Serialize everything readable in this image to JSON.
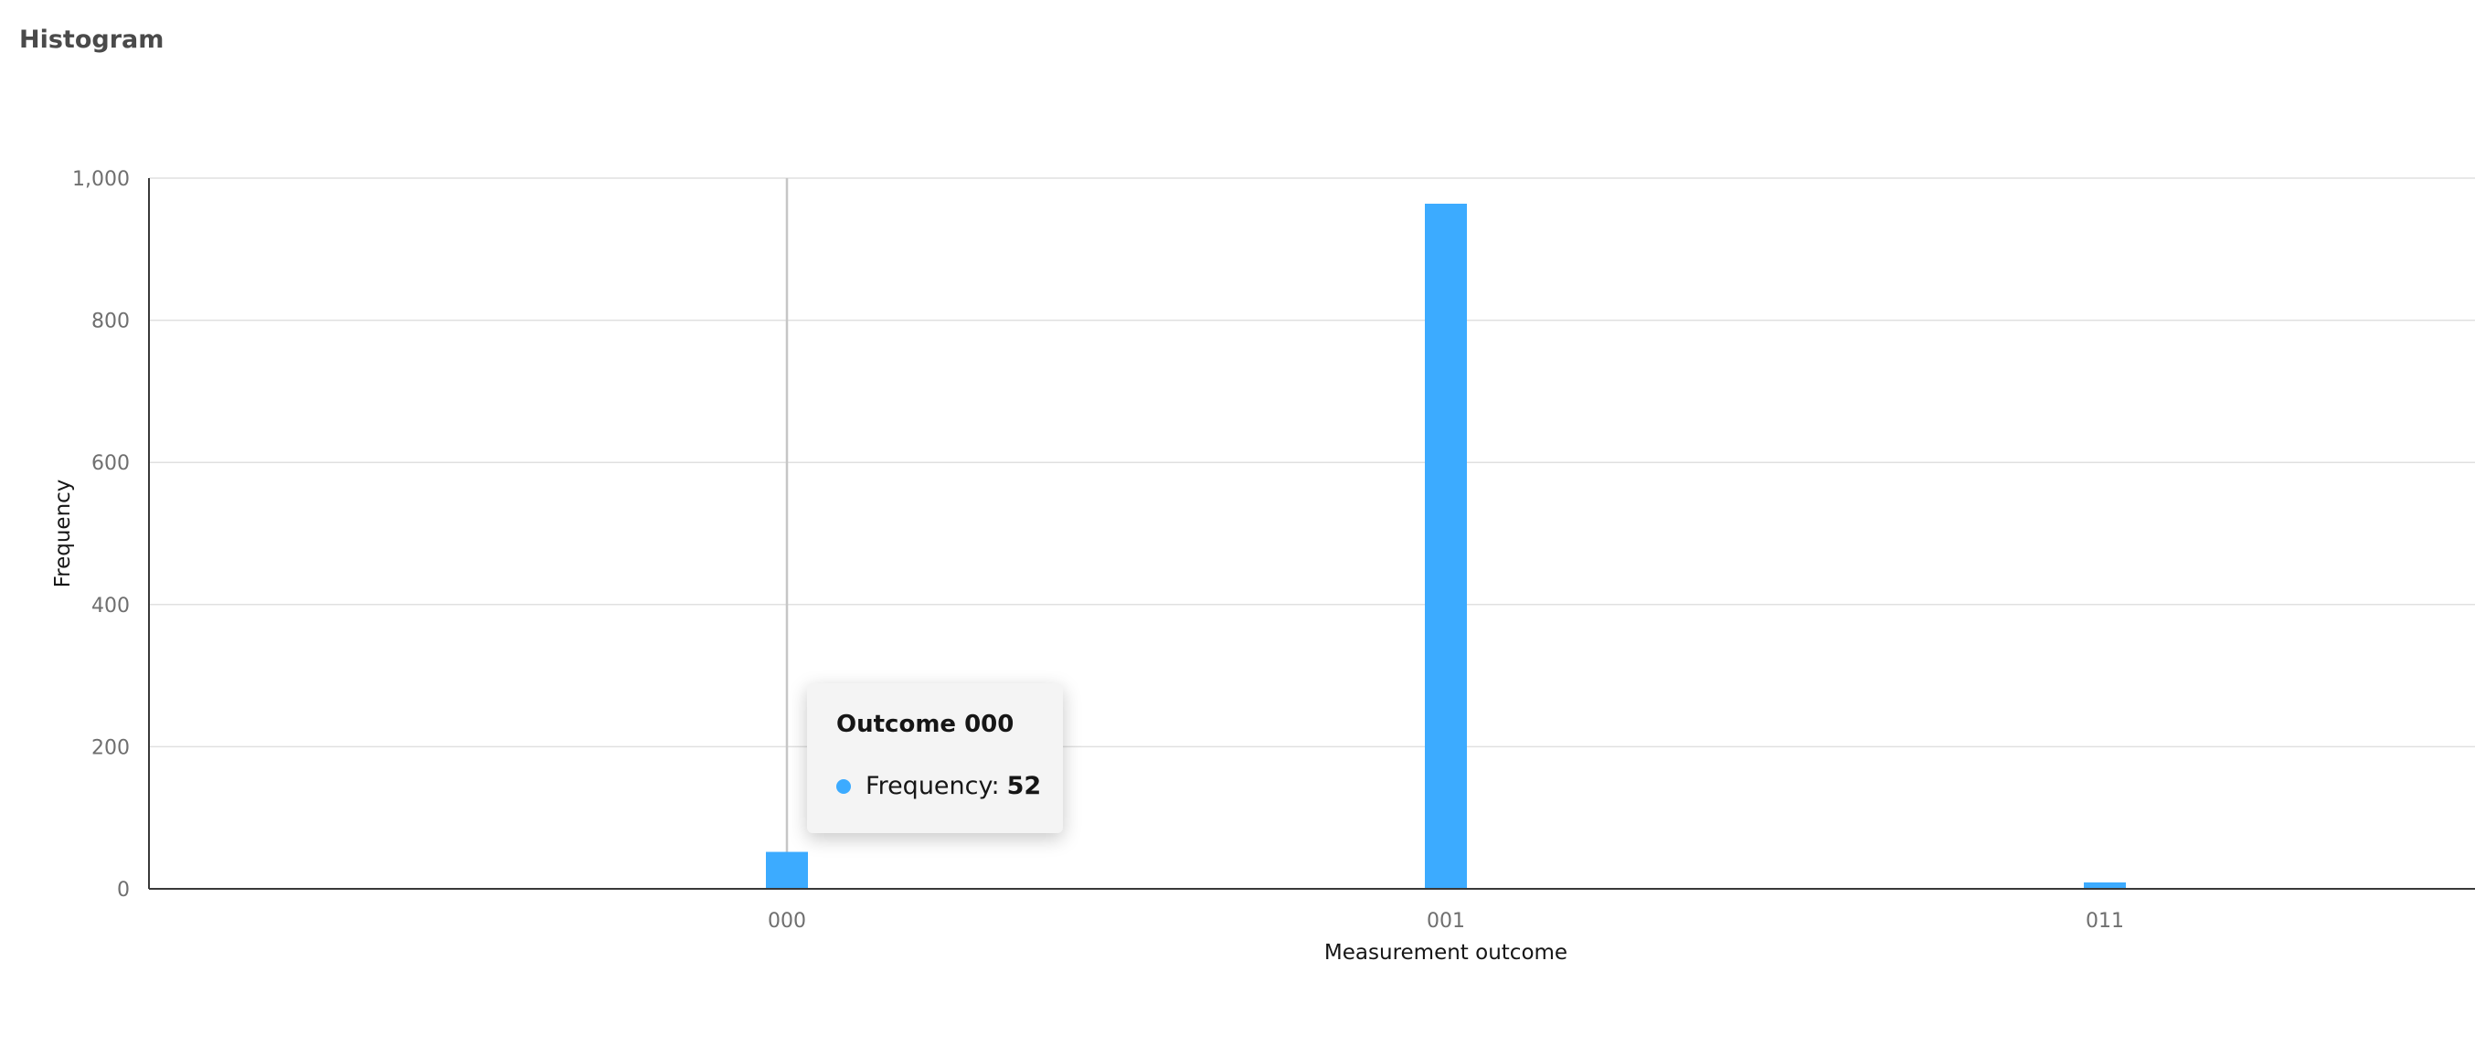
{
  "page": {
    "title": "Histogram"
  },
  "chart_data": {
    "type": "bar",
    "categories": [
      "000",
      "001",
      "011"
    ],
    "series": [
      {
        "name": "Frequency",
        "values": [
          52,
          964,
          9
        ],
        "color": "#3cabff"
      }
    ],
    "xlabel": "Measurement outcome",
    "ylabel": "Frequency",
    "ylim": [
      0,
      1000
    ],
    "yticks": [
      "0",
      "200",
      "400",
      "600",
      "800",
      "1,000"
    ],
    "grid": true,
    "hover_category": "000"
  },
  "tooltip": {
    "title": "Outcome 000",
    "series_label": "Frequency:",
    "value": "52",
    "dot_color": "#3cabff"
  }
}
